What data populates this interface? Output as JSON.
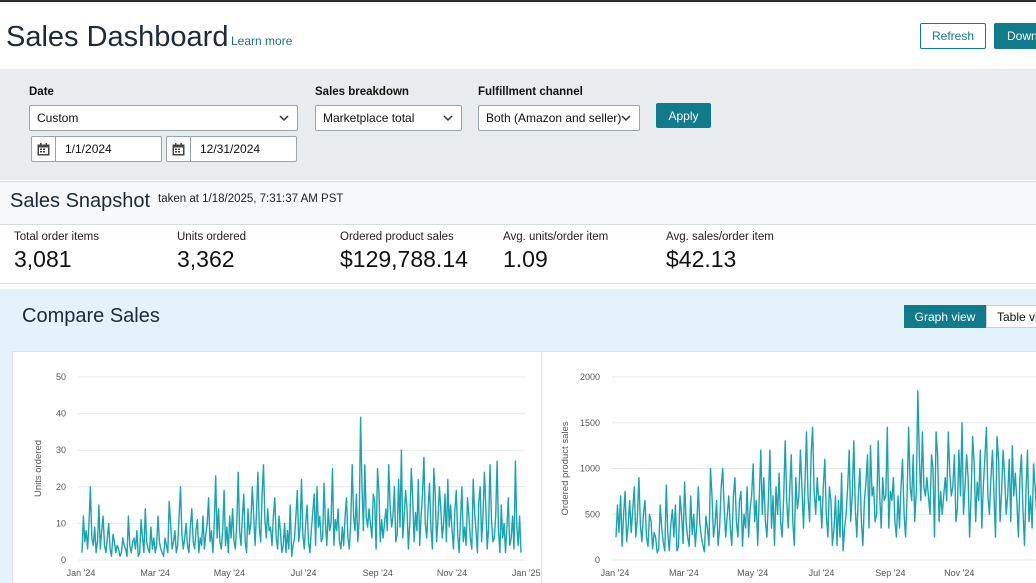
{
  "header": {
    "title": "Sales Dashboard",
    "learn_more": "Learn more",
    "refresh_label": "Refresh",
    "download_label": "Down"
  },
  "filters": {
    "date_label": "Date",
    "date_select": "Custom",
    "start_date": "1/1/2024",
    "end_date": "12/31/2024",
    "breakdown_label": "Sales breakdown",
    "breakdown_value": "Marketplace total",
    "fulfillment_label": "Fulfillment channel",
    "fulfillment_value": "Both (Amazon and seller)",
    "apply_label": "Apply"
  },
  "snapshot": {
    "title": "Sales Snapshot",
    "taken": "taken at 1/18/2025, 7:31:37 AM PST",
    "metrics": [
      {
        "label": "Total order items",
        "value": "3,081"
      },
      {
        "label": "Units ordered",
        "value": "3,362"
      },
      {
        "label": "Ordered product sales",
        "value": "$129,788.14"
      },
      {
        "label": "Avg. units/order item",
        "value": "1.09"
      },
      {
        "label": "Avg. sales/order item",
        "value": "$42.13"
      }
    ]
  },
  "compare": {
    "title": "Compare Sales",
    "graph_view_label": "Graph view",
    "table_view_label": "Table vi"
  },
  "colors": {
    "accent": "#117a8b",
    "line": "#1aa3b0",
    "filter_bg": "#e8ecee",
    "compare_bg": "#e3f2fb"
  },
  "chart_data": [
    {
      "type": "line",
      "ylabel": "Units ordered",
      "ylim": [
        0,
        50
      ],
      "yticks": [
        "0",
        "10",
        "20",
        "30",
        "40",
        "50"
      ],
      "xticks": [
        "Jan '24",
        "Mar '24",
        "May '24",
        "Jul '24",
        "Sep '24",
        "Nov '24",
        "Jan '25"
      ],
      "x_range": [
        "2024-01-01",
        "2025-01-01"
      ],
      "values": [
        2,
        12,
        5,
        8,
        3,
        10,
        20,
        6,
        4,
        9,
        2,
        5,
        15,
        3,
        8,
        12,
        4,
        2,
        6,
        10,
        3,
        1,
        7,
        5,
        2,
        4,
        3,
        1,
        2,
        6,
        4,
        3,
        1,
        12,
        4,
        2,
        5,
        6,
        3,
        8,
        1,
        2,
        11,
        6,
        2,
        14,
        5,
        3,
        2,
        9,
        3,
        6,
        2,
        4,
        12,
        5,
        3,
        2,
        1,
        6,
        4,
        2,
        16,
        10,
        3,
        5,
        8,
        2,
        4,
        12,
        20,
        7,
        3,
        6,
        10,
        4,
        2,
        9,
        14,
        5,
        3,
        8,
        11,
        2,
        6,
        4,
        12,
        3,
        7,
        10,
        17,
        5,
        8,
        2,
        10,
        23,
        6,
        14,
        5,
        3,
        8,
        19,
        4,
        9,
        2,
        12,
        6,
        14,
        5,
        3,
        10,
        24,
        8,
        4,
        12,
        18,
        5,
        2,
        14,
        7,
        10,
        20,
        12,
        4,
        13,
        24,
        9,
        5,
        18,
        26,
        11,
        6,
        14,
        8,
        9,
        4,
        12,
        17,
        6,
        3,
        12,
        8,
        2,
        4,
        10,
        2,
        8,
        3,
        15,
        1,
        4,
        6,
        12,
        19,
        5,
        9,
        22,
        7,
        3,
        10,
        15,
        5,
        2,
        8,
        13,
        18,
        4,
        20,
        9,
        12,
        5,
        6,
        21,
        10,
        4,
        14,
        8,
        10,
        25,
        4,
        11,
        8,
        14,
        5,
        3,
        9,
        4,
        12,
        17,
        6,
        3,
        10,
        26,
        12,
        8,
        18,
        5,
        11,
        39,
        20,
        8,
        26,
        12,
        9,
        14,
        10,
        6,
        18,
        16,
        3,
        25,
        19,
        5,
        11,
        6,
        10,
        14,
        8,
        26,
        15,
        9,
        12,
        20,
        5,
        7,
        22,
        9,
        30,
        6,
        12,
        19,
        14,
        3,
        10,
        25,
        17,
        5,
        13,
        8,
        22,
        4,
        12,
        18,
        28,
        10,
        6,
        14,
        21,
        9,
        3,
        25,
        18,
        5,
        11,
        20,
        14,
        6,
        10,
        18,
        5,
        22,
        9,
        15,
        8,
        3,
        14,
        19,
        7,
        2,
        11,
        20,
        5,
        9,
        4,
        17,
        12,
        6,
        3,
        22,
        13,
        8,
        2,
        16,
        20,
        5,
        12,
        24,
        15,
        3,
        9,
        26,
        11,
        5,
        6,
        12,
        27,
        8,
        2,
        15,
        6,
        10,
        2,
        9,
        17,
        4,
        6,
        12,
        3,
        27,
        9,
        4,
        12,
        2
      ]
    },
    {
      "type": "line",
      "ylabel": "Ordered product sales",
      "ylim": [
        0,
        2000
      ],
      "yticks": [
        "0",
        "500",
        "1000",
        "1500",
        "2000"
      ],
      "xticks": [
        "Jan '24",
        "Mar '24",
        "May '24",
        "Jul '24",
        "Sep '24",
        "Nov '24"
      ],
      "x_range": [
        "2024-01-01",
        "2024-12-10"
      ],
      "values": [
        250,
        600,
        300,
        700,
        150,
        500,
        750,
        200,
        380,
        650,
        300,
        560,
        800,
        250,
        450,
        900,
        380,
        200,
        500,
        650,
        250,
        150,
        500,
        420,
        120,
        300,
        250,
        80,
        120,
        600,
        350,
        200,
        100,
        820,
        300,
        100,
        400,
        550,
        250,
        600,
        100,
        150,
        700,
        500,
        180,
        850,
        420,
        250,
        150,
        700,
        280,
        500,
        150,
        380,
        800,
        400,
        250,
        160,
        90,
        480,
        350,
        160,
        1000,
        700,
        250,
        400,
        650,
        160,
        350,
        800,
        1000,
        560,
        250,
        500,
        700,
        350,
        160,
        700,
        900,
        420,
        250,
        650,
        750,
        150,
        500,
        350,
        800,
        250,
        560,
        700,
        1050,
        420,
        650,
        160,
        700,
        1200,
        500,
        900,
        420,
        250,
        650,
        1200,
        350,
        700,
        160,
        800,
        500,
        950,
        420,
        250,
        700,
        1300,
        650,
        350,
        800,
        1150,
        420,
        160,
        900,
        560,
        700,
        1200,
        800,
        350,
        850,
        1400,
        700,
        420,
        1150,
        1450,
        750,
        500,
        900,
        650,
        700,
        350,
        800,
        1100,
        500,
        250,
        800,
        650,
        160,
        350,
        700,
        160,
        650,
        250,
        950,
        100,
        350,
        500,
        800,
        1200,
        420,
        700,
        1300,
        560,
        250,
        700,
        1000,
        420,
        160,
        650,
        850,
        1150,
        350,
        1250,
        700,
        800,
        420,
        500,
        1300,
        700,
        350,
        900,
        650,
        700,
        1450,
        350,
        750,
        650,
        900,
        420,
        250,
        700,
        350,
        800,
        1100,
        500,
        250,
        700,
        1450,
        800,
        650,
        1150,
        420,
        750,
        1850,
        1150,
        650,
        1400,
        800,
        700,
        900,
        700,
        500,
        1150,
        1000,
        250,
        1400,
        1150,
        420,
        750,
        500,
        700,
        900,
        650,
        1400,
        950,
        700,
        800,
        1150,
        420,
        560,
        1200,
        700,
        1500,
        500,
        800,
        1150,
        900,
        250,
        700,
        1350,
        1050,
        420,
        850,
        650,
        1200,
        350,
        800,
        1100,
        1450,
        700,
        500,
        900,
        1200,
        700,
        250,
        1350,
        1100,
        420,
        750,
        1200,
        900,
        500,
        700,
        1100,
        420,
        1250,
        700,
        950,
        650,
        250,
        900,
        1150,
        560,
        160,
        750,
        1200,
        420,
        700,
        350,
        1050,
        800,
        500,
        250,
        1250,
        850,
        650,
        160,
        1000,
        1200,
        420,
        800,
        1400,
        950,
        250,
        700,
        1500
      ]
    }
  ]
}
